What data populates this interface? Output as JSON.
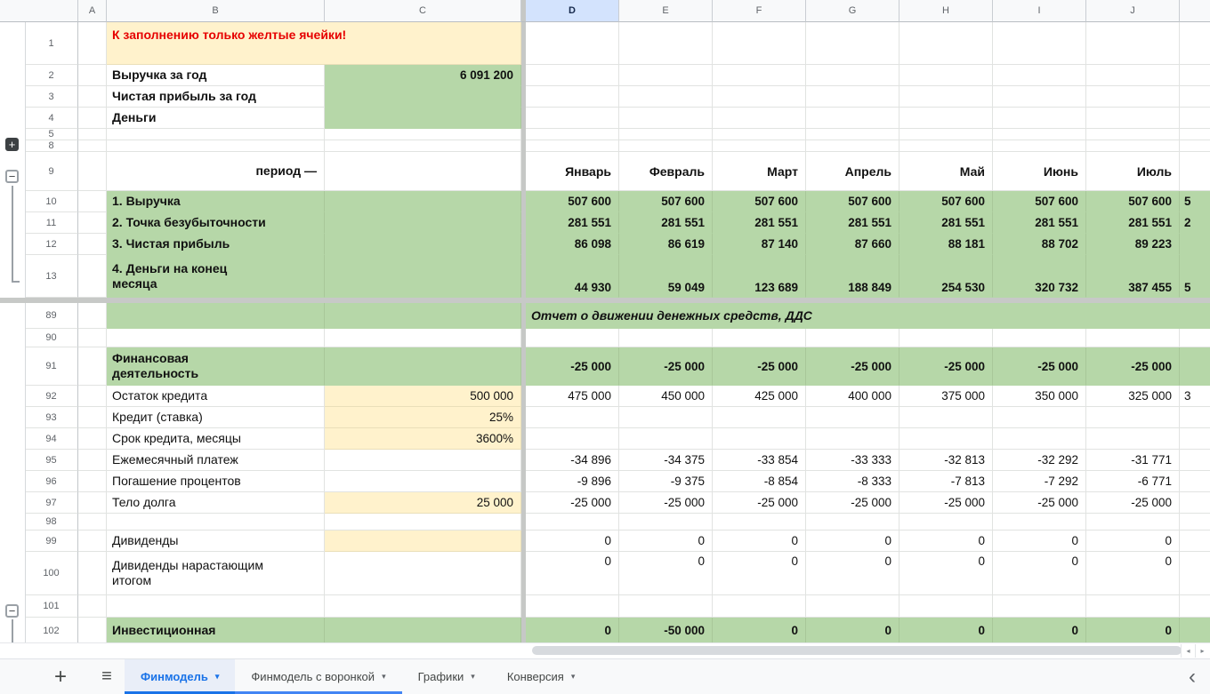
{
  "colors": {
    "fill_green": "#b6d7a8",
    "fill_yellow": "#fff2cc",
    "note_red": "#e60000",
    "active_tab_blue": "#1a73e8",
    "selected_column_header": "#d3e3fd"
  },
  "columns": {
    "letters": [
      "A",
      "B",
      "C",
      "D",
      "E",
      "F",
      "G",
      "H",
      "I",
      "J"
    ],
    "selected": "D"
  },
  "rows": {
    "r1": {
      "num": "1",
      "b": "К заполнению только желтые ячейки!"
    },
    "r2": {
      "num": "2",
      "b": "Выручка за год",
      "c": "6 091 200"
    },
    "r3": {
      "num": "3",
      "b": "Чистая прибыль за год",
      "c": ""
    },
    "r4": {
      "num": "4",
      "b": "Деньги",
      "c": ""
    },
    "r5": {
      "num": "5"
    },
    "r8": {
      "num": "8"
    },
    "r9": {
      "num": "9",
      "b": "период —",
      "months": [
        "Январь",
        "Февраль",
        "Март",
        "Апрель",
        "Май",
        "Июнь",
        "Июль"
      ]
    },
    "r10": {
      "num": "10",
      "b": "1. Выручка",
      "values": [
        "507 600",
        "507 600",
        "507 600",
        "507 600",
        "507 600",
        "507 600",
        "507 600"
      ],
      "k": "5"
    },
    "r11": {
      "num": "11",
      "b": "2. Точка безубыточности",
      "values": [
        "281 551",
        "281 551",
        "281 551",
        "281 551",
        "281 551",
        "281 551",
        "281 551"
      ],
      "k": "2"
    },
    "r12": {
      "num": "12",
      "b": "3. Чистая прибыль",
      "values": [
        "86 098",
        "86 619",
        "87 140",
        "87 660",
        "88 181",
        "88 702",
        "89 223"
      ],
      "k": ""
    },
    "r13": {
      "num": "13",
      "b": "4. Деньги на конец\nмесяца",
      "values": [
        "44 930",
        "59 049",
        "123 689",
        "188 849",
        "254 530",
        "320 732",
        "387 455"
      ],
      "k": "5"
    },
    "r89": {
      "num": "89",
      "title": "Отчет о движении денежных средств, ДДС"
    },
    "r90": {
      "num": "90"
    },
    "r91": {
      "num": "91",
      "b": "Финансовая\nдеятельность",
      "values": [
        "-25 000",
        "-25 000",
        "-25 000",
        "-25 000",
        "-25 000",
        "-25 000",
        "-25 000"
      ]
    },
    "r92": {
      "num": "92",
      "b": "Остаток кредита",
      "c": "500 000",
      "values": [
        "475 000",
        "450 000",
        "425 000",
        "400 000",
        "375 000",
        "350 000",
        "325 000"
      ],
      "k": "3"
    },
    "r93": {
      "num": "93",
      "b": "Кредит (ставка)",
      "c": "25%"
    },
    "r94": {
      "num": "94",
      "b": "Срок кредита, месяцы",
      "c": "3600%"
    },
    "r95": {
      "num": "95",
      "b": "Ежемесячный платеж",
      "values": [
        "-34 896",
        "-34 375",
        "-33 854",
        "-33 333",
        "-32 813",
        "-32 292",
        "-31 771"
      ]
    },
    "r96": {
      "num": "96",
      "b": "Погашение процентов",
      "values": [
        "-9 896",
        "-9 375",
        "-8 854",
        "-8 333",
        "-7 813",
        "-7 292",
        "-6 771"
      ]
    },
    "r97": {
      "num": "97",
      "b": "Тело долга",
      "c": "25 000",
      "values": [
        "-25 000",
        "-25 000",
        "-25 000",
        "-25 000",
        "-25 000",
        "-25 000",
        "-25 000"
      ]
    },
    "r98": {
      "num": "98"
    },
    "r99": {
      "num": "99",
      "b": "Дивиденды",
      "values": [
        "0",
        "0",
        "0",
        "0",
        "0",
        "0",
        "0"
      ]
    },
    "r100": {
      "num": "100",
      "b": "Дивиденды нарастающим\nитогом",
      "values": [
        "0",
        "0",
        "0",
        "0",
        "0",
        "0",
        "0"
      ]
    },
    "r101": {
      "num": "101"
    },
    "r102": {
      "num": "102",
      "b": "Инвестиционная",
      "values": [
        "0",
        "-50 000",
        "0",
        "0",
        "0",
        "0",
        "0"
      ]
    }
  },
  "sheet_tabs": {
    "add_icon": "+",
    "menu_icon": "≡",
    "caret_icon": "▾",
    "scroll_left_icon": "‹",
    "tabs": [
      {
        "label": "Финмодель",
        "active": true
      },
      {
        "label": "Финмодель с воронкой",
        "active": false
      },
      {
        "label": "Графики",
        "active": false
      },
      {
        "label": "Конверсия",
        "active": false
      }
    ]
  },
  "scrollbar": {
    "left_arrow": "◂",
    "right_arrow": "▸"
  }
}
